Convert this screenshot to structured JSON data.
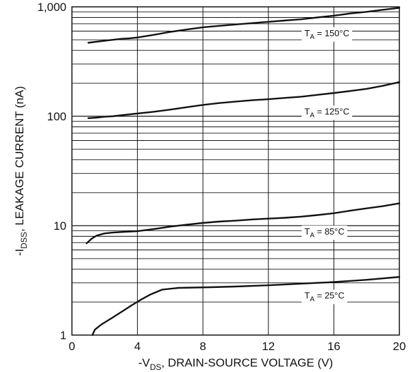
{
  "chart_data": {
    "type": "line",
    "title": "",
    "xlabel": {
      "prefix": "-V",
      "sub": "DS",
      "suffix": ", DRAIN-SOURCE VOLTAGE (V)"
    },
    "ylabel": {
      "prefix": "-I",
      "sub": "DSS",
      "suffix": ", LEAKAGE CURRENT (nA)"
    },
    "x_scale": "linear",
    "y_scale": "log",
    "xlim": [
      0,
      20
    ],
    "ylim": [
      1,
      1000
    ],
    "x_ticks": [
      {
        "value": 0,
        "label": "0"
      },
      {
        "value": 4,
        "label": "4"
      },
      {
        "value": 8,
        "label": "8"
      },
      {
        "value": 12,
        "label": "12"
      },
      {
        "value": 16,
        "label": "16"
      },
      {
        "value": 20,
        "label": "20"
      }
    ],
    "y_ticks": [
      {
        "value": 1,
        "label": "1"
      },
      {
        "value": 10,
        "label": "10"
      },
      {
        "value": 100,
        "label": "100"
      },
      {
        "value": 1000,
        "label": "1,000"
      }
    ],
    "grid": true,
    "legend": "none",
    "line_color": "#111111",
    "grid_color": "#111111",
    "series": [
      {
        "label": {
          "prefix": "T",
          "sub": "A",
          "suffix": " = 150°C"
        },
        "label_at": {
          "x": 14.2,
          "y": 570
        },
        "x": [
          1,
          1.5,
          2,
          2.5,
          3,
          3.5,
          4,
          5,
          6,
          7,
          8,
          9,
          10,
          11,
          12,
          13,
          14,
          15,
          16,
          17,
          18,
          19,
          20
        ],
        "y": [
          470,
          480,
          490,
          500,
          510,
          515,
          525,
          555,
          590,
          620,
          650,
          670,
          690,
          710,
          730,
          750,
          770,
          800,
          830,
          870,
          900,
          940,
          980
        ]
      },
      {
        "label": {
          "prefix": "T",
          "sub": "A",
          "suffix": " = 125°C"
        },
        "label_at": {
          "x": 14.2,
          "y": 110
        },
        "x": [
          1,
          1.5,
          2,
          2.5,
          3,
          4,
          5,
          6,
          7,
          8,
          9,
          10,
          11,
          12,
          13,
          14,
          15,
          16,
          17,
          18,
          19,
          20
        ],
        "y": [
          96,
          97,
          99,
          100,
          102,
          106,
          110,
          115,
          121,
          127,
          132,
          136,
          140,
          143,
          147,
          151,
          157,
          163,
          170,
          178,
          190,
          205
        ]
      },
      {
        "label": {
          "prefix": "T",
          "sub": "A",
          "suffix": " = 85°C"
        },
        "label_at": {
          "x": 14.2,
          "y": 8.8
        },
        "x": [
          0.9,
          1.2,
          1.5,
          2,
          2.5,
          3,
          4,
          5,
          6,
          7,
          8,
          9,
          10,
          11,
          12,
          13,
          14,
          15,
          16,
          17,
          18,
          19,
          20
        ],
        "y": [
          6.9,
          7.6,
          8.1,
          8.5,
          8.65,
          8.75,
          8.9,
          9.3,
          9.8,
          10.2,
          10.6,
          10.9,
          11.1,
          11.4,
          11.6,
          11.8,
          12.1,
          12.5,
          13.0,
          13.7,
          14.4,
          15.1,
          16.0
        ]
      },
      {
        "label": {
          "prefix": "T",
          "sub": "A",
          "suffix": " = 25°C"
        },
        "label_at": {
          "x": 14.2,
          "y": 2.28
        },
        "x": [
          1.25,
          1.4,
          1.8,
          2.4,
          3,
          3.6,
          4.2,
          4.8,
          5.5,
          6.5,
          7.5,
          8.5,
          10,
          12,
          14,
          16,
          18,
          20
        ],
        "y": [
          1.0,
          1.12,
          1.25,
          1.42,
          1.62,
          1.85,
          2.1,
          2.35,
          2.6,
          2.7,
          2.72,
          2.74,
          2.78,
          2.85,
          2.95,
          3.05,
          3.2,
          3.4
        ]
      }
    ]
  }
}
